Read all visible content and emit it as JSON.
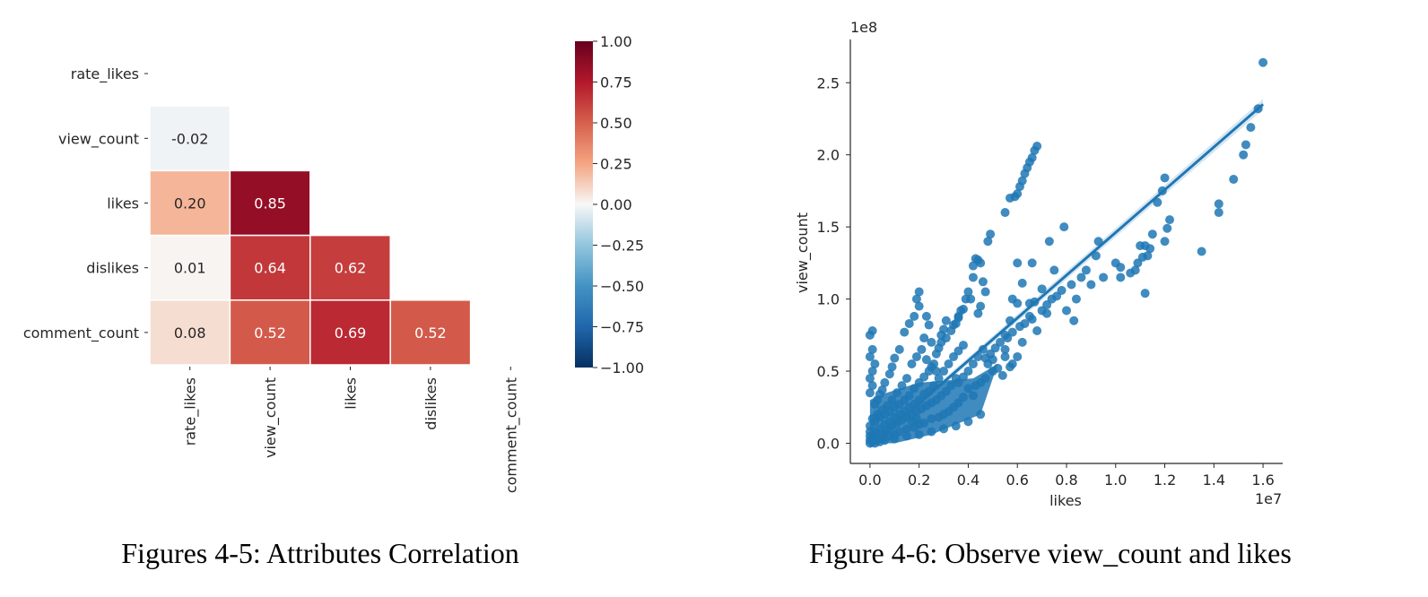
{
  "captions": {
    "left": "Figures 4-5: Attributes Correlation",
    "right": "Figure 4-6: Observe view_count and likes"
  },
  "chart_data": [
    {
      "type": "heatmap",
      "title": "",
      "variables": [
        "rate_likes",
        "view_count",
        "likes",
        "dislikes",
        "comment_count"
      ],
      "mask": "upper-triangle incl. diagonal",
      "cells": [
        {
          "row": "view_count",
          "col": "rate_likes",
          "value": -0.02,
          "label": "-0.02"
        },
        {
          "row": "likes",
          "col": "rate_likes",
          "value": 0.2,
          "label": "0.20"
        },
        {
          "row": "likes",
          "col": "view_count",
          "value": 0.85,
          "label": "0.85"
        },
        {
          "row": "dislikes",
          "col": "rate_likes",
          "value": 0.01,
          "label": "0.01"
        },
        {
          "row": "dislikes",
          "col": "view_count",
          "value": 0.64,
          "label": "0.64"
        },
        {
          "row": "dislikes",
          "col": "likes",
          "value": 0.62,
          "label": "0.62"
        },
        {
          "row": "comment_count",
          "col": "rate_likes",
          "value": 0.08,
          "label": "0.08"
        },
        {
          "row": "comment_count",
          "col": "view_count",
          "value": 0.52,
          "label": "0.52"
        },
        {
          "row": "comment_count",
          "col": "likes",
          "value": 0.69,
          "label": "0.69"
        },
        {
          "row": "comment_count",
          "col": "dislikes",
          "value": 0.52,
          "label": "0.52"
        }
      ],
      "colorbar": {
        "colormap": "RdBu_r",
        "range": [
          -1.0,
          1.0
        ],
        "ticks": [
          1.0,
          0.75,
          0.5,
          0.25,
          0.0,
          -0.25,
          -0.5,
          -0.75,
          -1.0
        ],
        "tick_labels": [
          "1.00",
          "0.75",
          "0.50",
          "0.25",
          "0.00",
          "−0.25",
          "−0.50",
          "−0.75",
          "−1.00"
        ]
      }
    },
    {
      "type": "scatter",
      "title": "",
      "xlabel": "likes",
      "ylabel": "view_count",
      "x_offset_label": "1e7",
      "y_offset_label": "1e8",
      "xlim": [
        -0.08,
        1.68
      ],
      "ylim": [
        -0.14,
        2.8
      ],
      "xticks": [
        0.0,
        0.2,
        0.4,
        0.6,
        0.8,
        1.0,
        1.2,
        1.4,
        1.6
      ],
      "xtick_labels": [
        "0.0",
        "0.2",
        "0.4",
        "0.6",
        "0.8",
        "1.0",
        "1.2",
        "1.4",
        "1.6"
      ],
      "yticks": [
        0.0,
        0.5,
        1.0,
        1.5,
        2.0,
        2.5
      ],
      "ytick_labels": [
        "0.0",
        "0.5",
        "1.0",
        "1.5",
        "2.0",
        "2.5"
      ],
      "grid": false,
      "point_color": "#1f77b4",
      "regression": {
        "x": [
          0.0,
          1.6
        ],
        "y": [
          -0.02,
          2.35
        ]
      },
      "points": [
        [
          1.6,
          2.64
        ],
        [
          1.58,
          2.32
        ],
        [
          1.55,
          2.19
        ],
        [
          1.53,
          2.07
        ],
        [
          1.52,
          2.0
        ],
        [
          1.48,
          1.83
        ],
        [
          1.42,
          1.66
        ],
        [
          1.42,
          1.6
        ],
        [
          1.35,
          1.33
        ],
        [
          1.2,
          1.84
        ],
        [
          1.19,
          1.75
        ],
        [
          1.22,
          1.55
        ],
        [
          1.21,
          1.49
        ],
        [
          1.2,
          1.4
        ],
        [
          1.17,
          1.67
        ],
        [
          1.15,
          1.45
        ],
        [
          1.14,
          1.35
        ],
        [
          1.13,
          1.3
        ],
        [
          1.12,
          1.37
        ],
        [
          1.1,
          1.37
        ],
        [
          1.11,
          1.29
        ],
        [
          1.09,
          1.25
        ],
        [
          1.08,
          1.2
        ],
        [
          1.06,
          1.18
        ],
        [
          1.12,
          1.04
        ],
        [
          1.02,
          1.22
        ],
        [
          1.0,
          1.25
        ],
        [
          1.02,
          1.15
        ],
        [
          0.93,
          1.4
        ],
        [
          0.92,
          1.3
        ],
        [
          0.95,
          1.15
        ],
        [
          0.88,
          1.2
        ],
        [
          0.9,
          1.1
        ],
        [
          0.84,
          1.0
        ],
        [
          0.8,
          0.92
        ],
        [
          0.83,
          0.85
        ],
        [
          0.79,
          1.5
        ],
        [
          0.73,
          1.4
        ],
        [
          0.75,
          1.2
        ],
        [
          0.7,
          1.07
        ],
        [
          0.72,
          0.9
        ],
        [
          0.67,
          0.98
        ],
        [
          0.65,
          0.97
        ],
        [
          0.66,
          1.25
        ],
        [
          0.62,
          1.11
        ],
        [
          0.6,
          0.97
        ],
        [
          0.57,
          0.85
        ],
        [
          0.58,
          1.0
        ],
        [
          0.65,
          0.88
        ],
        [
          0.68,
          0.78
        ],
        [
          0.62,
          0.7
        ],
        [
          0.55,
          0.75
        ],
        [
          0.6,
          0.6
        ],
        [
          0.58,
          0.55
        ],
        [
          0.55,
          0.6
        ],
        [
          0.6,
          1.25
        ],
        [
          0.57,
          0.53
        ],
        [
          0.54,
          0.47
        ],
        [
          0.68,
          2.06
        ],
        [
          0.67,
          2.03
        ],
        [
          0.66,
          1.98
        ],
        [
          0.65,
          1.95
        ],
        [
          0.64,
          1.91
        ],
        [
          0.63,
          1.87
        ],
        [
          0.62,
          1.82
        ],
        [
          0.61,
          1.78
        ],
        [
          0.6,
          1.73
        ],
        [
          0.59,
          1.71
        ],
        [
          0.57,
          1.7
        ],
        [
          0.55,
          1.6
        ],
        [
          0.49,
          1.45
        ],
        [
          0.48,
          1.4
        ],
        [
          0.43,
          1.28
        ],
        [
          0.45,
          1.25
        ],
        [
          0.44,
          1.27
        ],
        [
          0.42,
          1.23
        ],
        [
          0.42,
          1.15
        ],
        [
          0.4,
          1.05
        ],
        [
          0.39,
          1.0
        ],
        [
          0.37,
          0.92
        ],
        [
          0.36,
          0.87
        ],
        [
          0.34,
          0.82
        ],
        [
          0.33,
          0.78
        ],
        [
          0.31,
          0.73
        ],
        [
          0.29,
          0.7
        ],
        [
          0.28,
          0.66
        ],
        [
          0.27,
          0.62
        ],
        [
          0.41,
          1.0
        ],
        [
          0.38,
          0.93
        ],
        [
          0.36,
          0.88
        ],
        [
          0.35,
          0.83
        ],
        [
          0.45,
          0.95
        ],
        [
          0.47,
          1.05
        ],
        [
          0.46,
          1.12
        ],
        [
          0.44,
          0.9
        ],
        [
          0.31,
          0.85
        ],
        [
          0.3,
          0.79
        ],
        [
          0.29,
          0.75
        ],
        [
          0.2,
          0.95
        ],
        [
          0.2,
          1.05
        ],
        [
          0.19,
          1.0
        ],
        [
          0.18,
          0.88
        ],
        [
          0.16,
          0.83
        ],
        [
          0.14,
          0.77
        ],
        [
          0.12,
          0.65
        ],
        [
          0.1,
          0.59
        ],
        [
          0.09,
          0.53
        ],
        [
          0.08,
          0.48
        ],
        [
          0.06,
          0.42
        ],
        [
          0.05,
          0.37
        ],
        [
          0.04,
          0.34
        ],
        [
          0.03,
          0.3
        ],
        [
          0.02,
          0.27
        ],
        [
          0.23,
          0.88
        ],
        [
          0.24,
          0.82
        ],
        [
          0.22,
          0.73
        ],
        [
          0.25,
          0.7
        ],
        [
          0.21,
          0.65
        ],
        [
          0.19,
          0.6
        ],
        [
          0.17,
          0.55
        ],
        [
          0.23,
          0.58
        ],
        [
          0.25,
          0.53
        ],
        [
          0.27,
          0.5
        ],
        [
          0.01,
          0.78
        ],
        [
          0.01,
          0.65
        ],
        [
          0.0,
          0.6
        ],
        [
          0.01,
          0.5
        ],
        [
          0.0,
          0.45
        ],
        [
          0.0,
          0.75
        ],
        [
          0.02,
          0.55
        ],
        [
          0.0,
          0.35
        ],
        [
          0.01,
          0.4
        ],
        [
          0.5,
          0.58
        ],
        [
          0.48,
          0.55
        ],
        [
          0.5,
          0.5
        ],
        [
          0.47,
          0.45
        ],
        [
          0.52,
          0.52
        ],
        [
          0.45,
          0.42
        ],
        [
          0.43,
          0.4
        ],
        [
          0.4,
          0.38
        ],
        [
          0.42,
          0.33
        ],
        [
          0.38,
          0.32
        ],
        [
          0.36,
          0.28
        ],
        [
          0.34,
          0.25
        ],
        [
          0.32,
          0.22
        ],
        [
          0.3,
          0.2
        ],
        [
          0.28,
          0.18
        ],
        [
          0.25,
          0.17
        ],
        [
          0.22,
          0.14
        ],
        [
          0.2,
          0.13
        ],
        [
          0.18,
          0.11
        ],
        [
          0.15,
          0.1
        ],
        [
          0.12,
          0.08
        ],
        [
          0.1,
          0.06
        ],
        [
          0.08,
          0.05
        ],
        [
          0.05,
          0.03
        ],
        [
          0.03,
          0.02
        ],
        [
          0.35,
          0.45
        ],
        [
          0.33,
          0.4
        ],
        [
          0.31,
          0.36
        ],
        [
          0.29,
          0.33
        ],
        [
          0.27,
          0.3
        ],
        [
          0.25,
          0.28
        ],
        [
          0.23,
          0.26
        ],
        [
          0.21,
          0.24
        ],
        [
          0.19,
          0.22
        ],
        [
          0.17,
          0.2
        ],
        [
          0.4,
          0.5
        ],
        [
          0.38,
          0.46
        ],
        [
          0.36,
          0.42
        ],
        [
          0.26,
          0.4
        ],
        [
          0.24,
          0.36
        ],
        [
          0.22,
          0.34
        ],
        [
          0.2,
          0.3
        ],
        [
          0.18,
          0.27
        ],
        [
          0.16,
          0.25
        ],
        [
          0.14,
          0.22
        ],
        [
          0.12,
          0.2
        ],
        [
          0.1,
          0.18
        ],
        [
          0.08,
          0.15
        ],
        [
          0.06,
          0.13
        ],
        [
          0.04,
          0.1
        ],
        [
          0.02,
          0.08
        ],
        [
          0.01,
          0.05
        ],
        [
          0.0,
          0.02
        ],
        [
          0.0,
          0.0
        ],
        [
          0.01,
          0.01
        ],
        [
          0.02,
          0.0
        ],
        [
          0.03,
          0.04
        ],
        [
          0.05,
          0.07
        ],
        [
          0.07,
          0.09
        ],
        [
          0.09,
          0.12
        ],
        [
          0.11,
          0.14
        ],
        [
          0.13,
          0.16
        ],
        [
          0.15,
          0.18
        ],
        [
          0.17,
          0.15
        ],
        [
          0.19,
          0.17
        ],
        [
          0.14,
          0.3
        ],
        [
          0.12,
          0.27
        ],
        [
          0.1,
          0.25
        ],
        [
          0.08,
          0.22
        ],
        [
          0.06,
          0.2
        ],
        [
          0.04,
          0.18
        ],
        [
          0.02,
          0.15
        ],
        [
          0.16,
          0.33
        ],
        [
          0.18,
          0.38
        ],
        [
          0.2,
          0.42
        ],
        [
          0.22,
          0.46
        ],
        [
          0.24,
          0.5
        ],
        [
          0.26,
          0.55
        ],
        [
          0.28,
          0.45
        ],
        [
          0.3,
          0.5
        ],
        [
          0.32,
          0.55
        ],
        [
          0.34,
          0.6
        ],
        [
          0.36,
          0.64
        ],
        [
          0.38,
          0.68
        ],
        [
          0.15,
          0.45
        ],
        [
          0.13,
          0.4
        ],
        [
          0.11,
          0.35
        ],
        [
          0.09,
          0.3
        ],
        [
          0.07,
          0.26
        ],
        [
          0.05,
          0.23
        ],
        [
          0.03,
          0.2
        ],
        [
          0.01,
          0.17
        ],
        [
          0.0,
          0.12
        ],
        [
          0.0,
          0.08
        ],
        [
          0.0,
          0.05
        ],
        [
          0.44,
          0.6
        ],
        [
          0.46,
          0.65
        ],
        [
          0.42,
          0.55
        ],
        [
          0.55,
          0.65
        ],
        [
          0.53,
          0.7
        ],
        [
          0.51,
          0.66
        ],
        [
          0.49,
          0.62
        ],
        [
          0.47,
          0.59
        ],
        [
          0.56,
          0.73
        ],
        [
          0.58,
          0.77
        ],
        [
          0.61,
          0.81
        ],
        [
          0.63,
          0.83
        ],
        [
          0.66,
          0.86
        ],
        [
          0.7,
          0.92
        ],
        [
          0.72,
          0.96
        ],
        [
          0.74,
          1.0
        ],
        [
          0.76,
          1.02
        ],
        [
          0.78,
          1.06
        ],
        [
          0.82,
          1.1
        ],
        [
          0.86,
          1.15
        ],
        [
          0.3,
          0.1
        ],
        [
          0.25,
          0.08
        ],
        [
          0.35,
          0.12
        ],
        [
          0.4,
          0.15
        ],
        [
          0.45,
          0.2
        ],
        [
          0.2,
          0.06
        ],
        [
          0.15,
          0.05
        ],
        [
          0.1,
          0.03
        ],
        [
          0.06,
          0.02
        ],
        [
          0.04,
          0.01
        ]
      ]
    }
  ]
}
